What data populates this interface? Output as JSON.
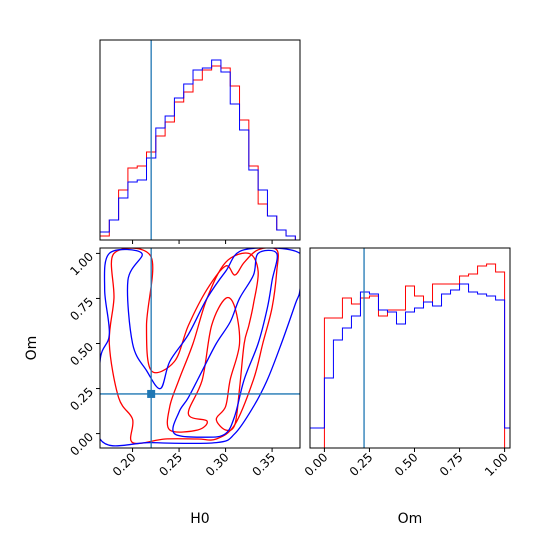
{
  "chart_data": {
    "type": "corner",
    "parameters": [
      "H0",
      "Om"
    ],
    "colors": {
      "series_a": "#ff0000",
      "series_b": "#0000ff",
      "truth": "#1f77b4"
    },
    "truth": {
      "H0": 0.22,
      "Om": 0.22
    },
    "axes": {
      "H0": {
        "range": [
          0.165,
          0.38
        ],
        "ticks": [
          0.2,
          0.25,
          0.3,
          0.35
        ],
        "tick_labels": [
          "0.20",
          "0.25",
          "0.30",
          "0.35"
        ],
        "label": "H0"
      },
      "Om": {
        "range": [
          -0.08,
          1.03
        ],
        "ticks": [
          0.0,
          0.25,
          0.5,
          0.75,
          1.0
        ],
        "tick_labels": [
          "0.00",
          "0.25",
          "0.50",
          "0.75",
          "1.00"
        ],
        "label": "Om"
      }
    },
    "hist_H0": {
      "type": "step",
      "edges": [
        0.165,
        0.175,
        0.185,
        0.195,
        0.205,
        0.215,
        0.225,
        0.235,
        0.245,
        0.255,
        0.265,
        0.275,
        0.285,
        0.295,
        0.305,
        0.315,
        0.325,
        0.335,
        0.345,
        0.355,
        0.365,
        0.375
      ],
      "series": [
        {
          "color": "red",
          "values": [
            0.02,
            0.1,
            0.25,
            0.36,
            0.37,
            0.44,
            0.52,
            0.59,
            0.69,
            0.74,
            0.8,
            0.85,
            0.87,
            0.86,
            0.77,
            0.6,
            0.37,
            0.18,
            0.12,
            0.05,
            0.02
          ]
        },
        {
          "color": "blue",
          "values": [
            0.04,
            0.1,
            0.21,
            0.29,
            0.3,
            0.41,
            0.56,
            0.62,
            0.71,
            0.78,
            0.85,
            0.86,
            0.9,
            0.84,
            0.68,
            0.55,
            0.35,
            0.25,
            0.12,
            0.05,
            0.02
          ]
        }
      ]
    },
    "hist_Om": {
      "type": "step",
      "edges": [
        -0.1,
        -0.05,
        0.0,
        0.05,
        0.1,
        0.15,
        0.2,
        0.25,
        0.3,
        0.35,
        0.4,
        0.45,
        0.5,
        0.55,
        0.6,
        0.65,
        0.7,
        0.75,
        0.8,
        0.85,
        0.9,
        0.95,
        1.0,
        1.05
      ],
      "series": [
        {
          "color": "red",
          "values": [
            0.0,
            0.0,
            0.65,
            0.65,
            0.75,
            0.72,
            0.75,
            0.76,
            0.66,
            0.69,
            0.69,
            0.81,
            0.76,
            0.73,
            0.82,
            0.82,
            0.82,
            0.86,
            0.87,
            0.91,
            0.92,
            0.88,
            0.0
          ]
        },
        {
          "color": "blue",
          "values": [
            0.1,
            0.1,
            0.35,
            0.54,
            0.6,
            0.66,
            0.78,
            0.77,
            0.69,
            0.68,
            0.62,
            0.68,
            0.7,
            0.73,
            0.71,
            0.77,
            0.79,
            0.82,
            0.78,
            0.77,
            0.76,
            0.74,
            0.1
          ]
        }
      ]
    },
    "contours_H0_Om": [
      {
        "color": "red",
        "levels": [
          [
            [
              0.24,
              0.02
            ],
            [
              0.27,
              0.02
            ],
            [
              0.28,
              0.07
            ],
            [
              0.26,
              0.11
            ],
            [
              0.275,
              0.3
            ],
            [
              0.285,
              0.6
            ],
            [
              0.3,
              0.75
            ],
            [
              0.31,
              0.7
            ],
            [
              0.315,
              0.5
            ],
            [
              0.305,
              0.3
            ],
            [
              0.3,
              0.15
            ],
            [
              0.29,
              0.08
            ],
            [
              0.3,
              0.02
            ],
            [
              0.31,
              0.05
            ],
            [
              0.315,
              0.25
            ],
            [
              0.32,
              0.5
            ],
            [
              0.325,
              0.6
            ],
            [
              0.33,
              0.72
            ],
            [
              0.335,
              0.9
            ],
            [
              0.325,
              1.0
            ],
            [
              0.3,
              0.95
            ],
            [
              0.28,
              0.75
            ],
            [
              0.265,
              0.5
            ],
            [
              0.25,
              0.3
            ],
            [
              0.24,
              0.15
            ],
            [
              0.24,
              0.02
            ]
          ],
          [
            [
              0.2,
              -0.05
            ],
            [
              0.235,
              -0.03
            ],
            [
              0.27,
              -0.03
            ],
            [
              0.29,
              -0.03
            ],
            [
              0.31,
              0.05
            ],
            [
              0.33,
              0.3
            ],
            [
              0.34,
              0.5
            ],
            [
              0.35,
              0.7
            ],
            [
              0.355,
              0.9
            ],
            [
              0.355,
              1.02
            ],
            [
              0.335,
              1.02
            ],
            [
              0.32,
              0.95
            ],
            [
              0.31,
              0.88
            ],
            [
              0.3,
              0.93
            ],
            [
              0.28,
              0.8
            ],
            [
              0.26,
              0.6
            ],
            [
              0.245,
              0.4
            ],
            [
              0.22,
              0.35
            ],
            [
              0.215,
              0.6
            ],
            [
              0.22,
              0.98
            ],
            [
              0.18,
              1.0
            ],
            [
              0.18,
              0.75
            ],
            [
              0.175,
              0.5
            ],
            [
              0.185,
              0.2
            ],
            [
              0.2,
              0.08
            ],
            [
              0.2,
              -0.05
            ]
          ]
        ]
      },
      {
        "color": "blue",
        "levels": [
          [
            [
              0.245,
              0.0
            ],
            [
              0.28,
              -0.02
            ],
            [
              0.3,
              0.0
            ],
            [
              0.31,
              0.1
            ],
            [
              0.32,
              0.3
            ],
            [
              0.335,
              0.5
            ],
            [
              0.345,
              0.7
            ],
            [
              0.35,
              0.85
            ],
            [
              0.355,
              1.0
            ],
            [
              0.335,
              1.0
            ],
            [
              0.33,
              0.88
            ],
            [
              0.315,
              0.75
            ],
            [
              0.305,
              0.62
            ],
            [
              0.29,
              0.5
            ],
            [
              0.275,
              0.35
            ],
            [
              0.26,
              0.2
            ],
            [
              0.25,
              0.12
            ],
            [
              0.245,
              0.0
            ]
          ],
          [
            [
              0.165,
              -0.03
            ],
            [
              0.22,
              -0.05
            ],
            [
              0.29,
              -0.05
            ],
            [
              0.31,
              0.0
            ],
            [
              0.33,
              0.15
            ],
            [
              0.345,
              0.3
            ],
            [
              0.36,
              0.5
            ],
            [
              0.375,
              0.72
            ],
            [
              0.38,
              0.8
            ],
            [
              0.38,
              1.0
            ],
            [
              0.32,
              1.02
            ],
            [
              0.3,
              0.9
            ],
            [
              0.28,
              0.75
            ],
            [
              0.26,
              0.55
            ],
            [
              0.24,
              0.4
            ],
            [
              0.23,
              0.25
            ],
            [
              0.215,
              0.35
            ],
            [
              0.2,
              0.5
            ],
            [
              0.195,
              0.85
            ],
            [
              0.21,
              1.0
            ],
            [
              0.175,
              1.0
            ],
            [
              0.17,
              0.8
            ],
            [
              0.175,
              0.55
            ],
            [
              0.165,
              0.4
            ],
            [
              0.165,
              -0.03
            ]
          ]
        ]
      }
    ]
  }
}
